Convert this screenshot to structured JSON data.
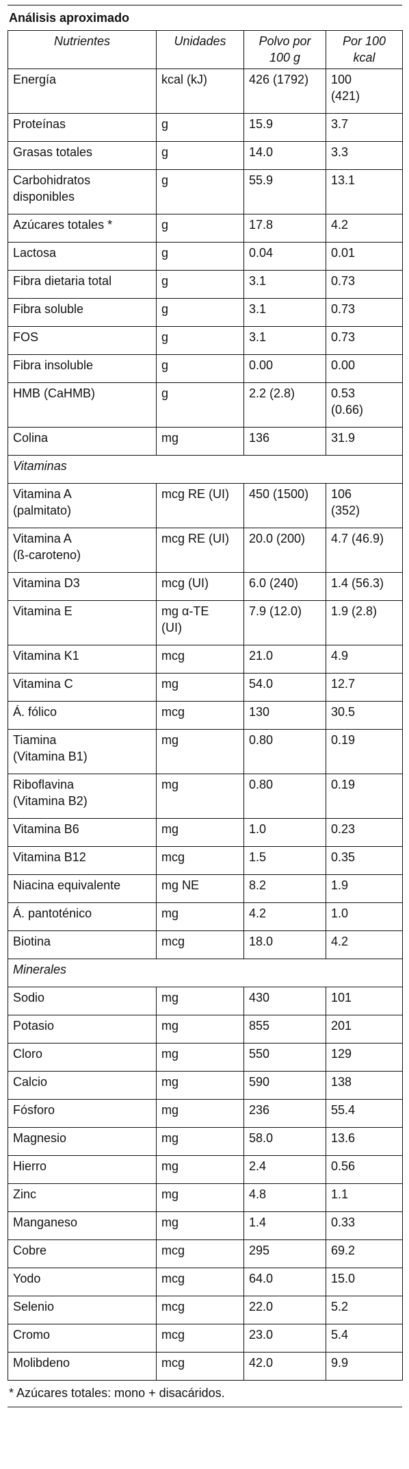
{
  "header": {
    "title": "Análisis aproximado"
  },
  "table": {
    "columns": [
      "Nutrientes",
      "Unidades",
      "Polvo por\n100 g",
      "Por 100\nkcal"
    ],
    "rows": [
      [
        "Energía",
        "kcal (kJ)",
        "426 (1792)",
        "100\n(421)"
      ],
      [
        "Proteínas",
        "g",
        "15.9",
        "3.7"
      ],
      [
        "Grasas totales",
        "g",
        "14.0",
        "3.3"
      ],
      [
        "Carbohidratos\ndisponibles",
        "g",
        "55.9",
        "13.1"
      ],
      [
        "Azúcares totales *",
        "g",
        "17.8",
        "4.2"
      ],
      [
        "Lactosa",
        "g",
        "0.04",
        "0.01"
      ],
      [
        "Fibra dietaria total",
        "g",
        "3.1",
        "0.73"
      ],
      [
        "Fibra soluble",
        "g",
        "3.1",
        "0.73"
      ],
      [
        "FOS",
        "g",
        "3.1",
        "0.73"
      ],
      [
        "Fibra insoluble",
        "g",
        "0.00",
        "0.00"
      ],
      [
        "HMB (CaHMB)",
        "g",
        "2.2 (2.8)",
        "0.53\n(0.66)"
      ],
      [
        "Colina",
        "mg",
        "136",
        "31.9"
      ],
      [
        "Vitaminas"
      ],
      [
        "Vitamina A\n(palmitato)",
        "mcg RE (UI)",
        "450 (1500)",
        "106\n(352)"
      ],
      [
        "Vitamina A\n(ß-caroteno)",
        "mcg RE (UI)",
        "20.0 (200)",
        "4.7 (46.9)"
      ],
      [
        "Vitamina D3",
        "mcg (UI)",
        "6.0 (240)",
        "1.4 (56.3)"
      ],
      [
        "Vitamina E",
        "mg  α-TE\n(UI)",
        "7.9 (12.0)",
        "1.9 (2.8)"
      ],
      [
        "Vitamina K1",
        "mcg",
        "21.0",
        "4.9"
      ],
      [
        "Vitamina C",
        "mg",
        "54.0",
        "12.7"
      ],
      [
        "Á. fólico",
        "mcg",
        "130",
        "30.5"
      ],
      [
        "Tiamina\n(Vitamina B1)",
        "mg",
        "0.80",
        "0.19"
      ],
      [
        "Riboflavina\n(Vitamina B2)",
        "mg",
        "0.80",
        "0.19"
      ],
      [
        "Vitamina B6",
        "mg",
        "1.0",
        "0.23"
      ],
      [
        "Vitamina B12",
        "mcg",
        "1.5",
        "0.35"
      ],
      [
        "Niacina equivalente",
        "mg NE",
        "8.2",
        "1.9"
      ],
      [
        "Á. pantoténico",
        "mg",
        "4.2",
        "1.0"
      ],
      [
        "Biotina",
        "mcg",
        "18.0",
        "4.2"
      ],
      [
        "Minerales"
      ],
      [
        "Sodio",
        "mg",
        "430",
        "101"
      ],
      [
        "Potasio",
        "mg",
        "855",
        "201"
      ],
      [
        "Cloro",
        "mg",
        "550",
        "129"
      ],
      [
        "Calcio",
        "mg",
        "590",
        "138"
      ],
      [
        "Fósforo",
        "mg",
        "236",
        "55.4"
      ],
      [
        "Magnesio",
        "mg",
        "58.0",
        "13.6"
      ],
      [
        "Hierro",
        "mg",
        "2.4",
        "0.56"
      ],
      [
        "Zinc",
        "mg",
        "4.8",
        "1.1"
      ],
      [
        "Manganeso",
        "mg",
        "1.4",
        "0.33"
      ],
      [
        "Cobre",
        "mcg",
        "295",
        "69.2"
      ],
      [
        "Yodo",
        "mcg",
        "64.0",
        "15.0"
      ],
      [
        "Selenio",
        "mcg",
        "22.0",
        "5.2"
      ],
      [
        "Cromo",
        "mcg",
        "23.0",
        "5.4"
      ],
      [
        "Molibdeno",
        "mcg",
        "42.0",
        "9.9"
      ]
    ]
  },
  "footnote": "* Azúcares totales: mono + disacáridos."
}
